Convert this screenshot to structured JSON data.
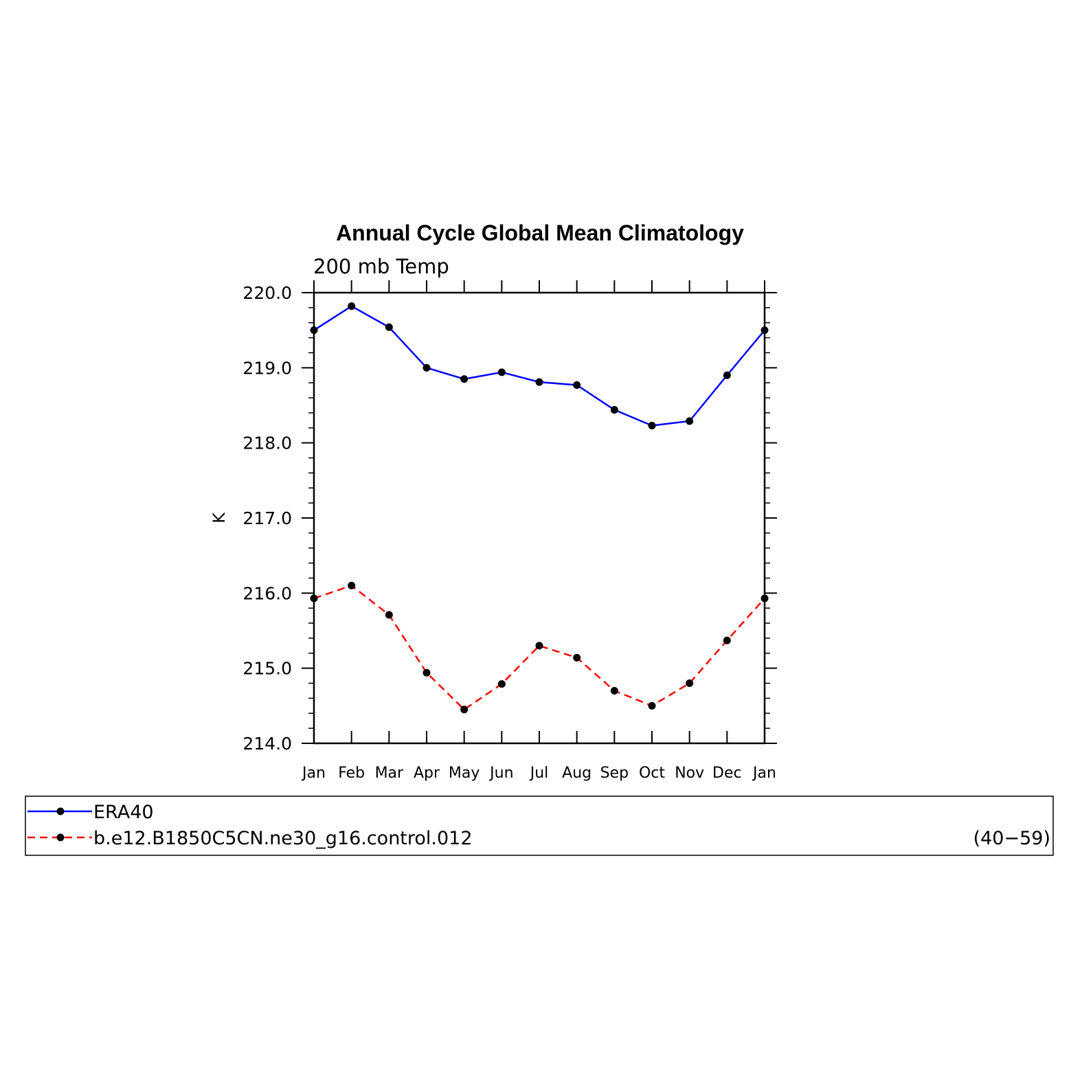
{
  "chart_data": {
    "type": "line",
    "title": "Annual Cycle Global Mean Climatology",
    "subtitle": "200 mb Temp",
    "ylabel": "K",
    "xlabel": "",
    "ylim": [
      214.0,
      220.0
    ],
    "yticks": [
      "214.0",
      "215.0",
      "216.0",
      "217.0",
      "218.0",
      "219.0",
      "220.0"
    ],
    "categories": [
      "Jan",
      "Feb",
      "Mar",
      "Apr",
      "May",
      "Jun",
      "Jul",
      "Aug",
      "Sep",
      "Oct",
      "Nov",
      "Dec",
      "Jan"
    ],
    "series": [
      {
        "name": "ERA40",
        "color": "#0000ff",
        "dash": "solid",
        "marker": "filled-circle",
        "values": [
          219.5,
          219.82,
          219.54,
          219.0,
          218.85,
          218.94,
          218.81,
          218.77,
          218.44,
          218.23,
          218.29,
          218.9,
          219.5
        ]
      },
      {
        "name": "b.e12.B1850C5CN.ne30_g16.control.012",
        "color": "#ff0000",
        "dash": "dashed",
        "marker": "filled-circle",
        "values": [
          215.93,
          216.1,
          215.71,
          214.94,
          214.45,
          214.79,
          215.3,
          215.14,
          214.7,
          214.5,
          214.8,
          215.37,
          215.93
        ]
      }
    ],
    "legend": {
      "placement": "below",
      "years_label": "(40−59)"
    },
    "grid": false
  }
}
